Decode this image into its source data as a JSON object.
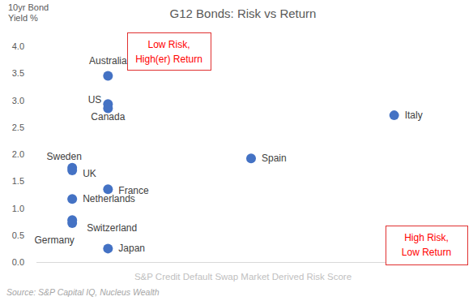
{
  "chart_data": {
    "type": "scatter",
    "title": "G12 Bonds: Risk vs Return",
    "ylabel": [
      "10yr Bond",
      "Yield %"
    ],
    "xlabel": "S&P Credit Default Swap Market Derived Risk Score",
    "source": "Source: S&P Capital IQ, Nucleus Wealth",
    "labels": [
      "Australia",
      "US",
      "Canada",
      "Italy",
      "Spain",
      "Sweden",
      "UK",
      "France",
      "Netherlands",
      "Switzerland",
      "Germany",
      "Japan"
    ],
    "x": [
      2,
      2,
      2,
      10,
      6,
      1,
      1,
      2,
      1,
      1,
      1,
      2
    ],
    "values": [
      3.45,
      2.93,
      2.85,
      2.72,
      1.92,
      1.75,
      1.7,
      1.35,
      1.17,
      0.78,
      0.72,
      0.25
    ],
    "color": "#4472c4",
    "marker": "circle",
    "xlim": [
      0,
      12
    ],
    "ylim": [
      0,
      4
    ],
    "yticks": [
      {
        "value": 0,
        "label": "0.0"
      },
      0.5,
      {
        "value": 1,
        "label": "1.0"
      },
      1.5,
      {
        "value": 2,
        "label": "2.0"
      },
      2.5,
      {
        "value": 3,
        "label": "3.0"
      },
      3.5,
      {
        "value": 4,
        "label": "4.0"
      }
    ],
    "tick_labels": "y",
    "grid": false,
    "annotations": [
      [
        "Low Risk,",
        "High(er) Return"
      ],
      [
        "High Risk,",
        "Low Return"
      ]
    ]
  }
}
